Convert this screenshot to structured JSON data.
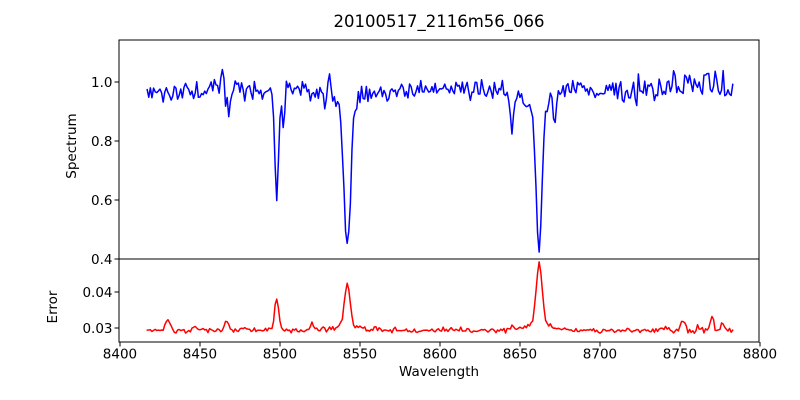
{
  "chart_data": {
    "type": "line",
    "title": "20100517_2116m56_066",
    "xlabel": "Wavelength",
    "xlim": [
      8399.4,
      8799.4
    ],
    "x_ticks": [
      8400,
      8450,
      8500,
      8550,
      8600,
      8650,
      8700,
      8750,
      8800
    ],
    "x_tick_labels": [
      "8400",
      "8450",
      "8500",
      "8550",
      "8600",
      "8650",
      "8700",
      "8750",
      "8800"
    ],
    "x_range": [
      8417,
      8783
    ],
    "sample_step": 1.0,
    "grid": false,
    "legend": false,
    "absorption_lines_summary": [
      {
        "wavelength": 8498,
        "spectrum_min": 0.61,
        "error_peak": 0.038
      },
      {
        "wavelength": 8542,
        "spectrum_min": 0.43,
        "error_peak": 0.0425
      },
      {
        "wavelength": 8662,
        "spectrum_min": 0.46,
        "error_peak": 0.048
      }
    ],
    "panels": [
      {
        "name": "spectrum",
        "ylabel": "Spectrum",
        "ylim": [
          0.4,
          1.1424
        ],
        "y_ticks": [
          1.0,
          0.8,
          0.6,
          0.4
        ],
        "y_tick_labels": [
          "1.0",
          "0.8",
          "0.6",
          "0.4"
        ],
        "line_color": "#0000ff",
        "series": {
          "seed": 2010,
          "baseline": 0.973,
          "noise_sigma": 0.018,
          "noise_ramp": {
            "start": 8690,
            "factor": 1.7
          },
          "features": [
            {
              "center": 8464,
              "amp": 0.08,
              "sigma": 0.9
            },
            {
              "center": 8468,
              "amp": -0.09,
              "sigma": 1.1
            },
            {
              "center": 8498,
              "amp": -0.36,
              "sigma": 1.2
            },
            {
              "center": 8502,
              "amp": -0.1,
              "sigma": 0.9
            },
            {
              "center": 8531,
              "amp": 0.1,
              "sigma": 0.8
            },
            {
              "center": 8542,
              "amp": -0.5,
              "sigma": 2.1
            },
            {
              "center": 8542,
              "amp": -0.045,
              "sigma": 11
            },
            {
              "center": 8645,
              "amp": -0.12,
              "sigma": 1.0
            },
            {
              "center": 8662,
              "amp": -0.47,
              "sigma": 1.9
            },
            {
              "center": 8662,
              "amp": -0.045,
              "sigma": 9
            },
            {
              "center": 8672,
              "amp": -0.07,
              "sigma": 0.9
            },
            {
              "center": 8755,
              "amp": 0.07,
              "sigma": 1.1
            },
            {
              "center": 8766,
              "amp": 0.07,
              "sigma": 1.0
            }
          ]
        }
      },
      {
        "name": "error",
        "ylabel": "Error",
        "ylim": [
          0.02611,
          0.04917
        ],
        "y_ticks": [
          0.04,
          0.03
        ],
        "y_tick_labels": [
          "0.04",
          "0.03"
        ],
        "line_color": "#ff0000",
        "series": {
          "seed": 517,
          "baseline": 0.0293,
          "noise_sigma": 0.00035,
          "noise_ramp": {
            "start": 8720,
            "factor": 1.6
          },
          "features": [
            {
              "center": 8430,
              "amp": 0.003,
              "sigma": 1.4
            },
            {
              "center": 8447,
              "amp": 0.0012,
              "sigma": 1.4
            },
            {
              "center": 8467,
              "amp": 0.0022,
              "sigma": 1.4
            },
            {
              "center": 8478,
              "amp": 0.001,
              "sigma": 1.2
            },
            {
              "center": 8498,
              "amp": 0.0088,
              "sigma": 1.2
            },
            {
              "center": 8520,
              "amp": 0.0018,
              "sigma": 1.5
            },
            {
              "center": 8542,
              "amp": 0.012,
              "sigma": 1.7
            },
            {
              "center": 8542,
              "amp": 0.0012,
              "sigma": 8
            },
            {
              "center": 8560,
              "amp": 0.001,
              "sigma": 1.5
            },
            {
              "center": 8645,
              "amp": 0.0008,
              "sigma": 1.5
            },
            {
              "center": 8662,
              "amp": 0.017,
              "sigma": 1.8
            },
            {
              "center": 8662,
              "amp": 0.0016,
              "sigma": 9
            },
            {
              "center": 8740,
              "amp": 0.0012,
              "sigma": 1.5
            },
            {
              "center": 8752,
              "amp": 0.003,
              "sigma": 1.2
            },
            {
              "center": 8762,
              "amp": 0.0015,
              "sigma": 1.0
            },
            {
              "center": 8770,
              "amp": 0.0038,
              "sigma": 1.1
            },
            {
              "center": 8776,
              "amp": 0.002,
              "sigma": 1.0
            }
          ]
        }
      }
    ],
    "colors": {
      "spectrum_line": "#0000ff",
      "error_line": "#ff0000",
      "frame": "#000000",
      "background": "#ffffff",
      "text": "#000000"
    }
  }
}
